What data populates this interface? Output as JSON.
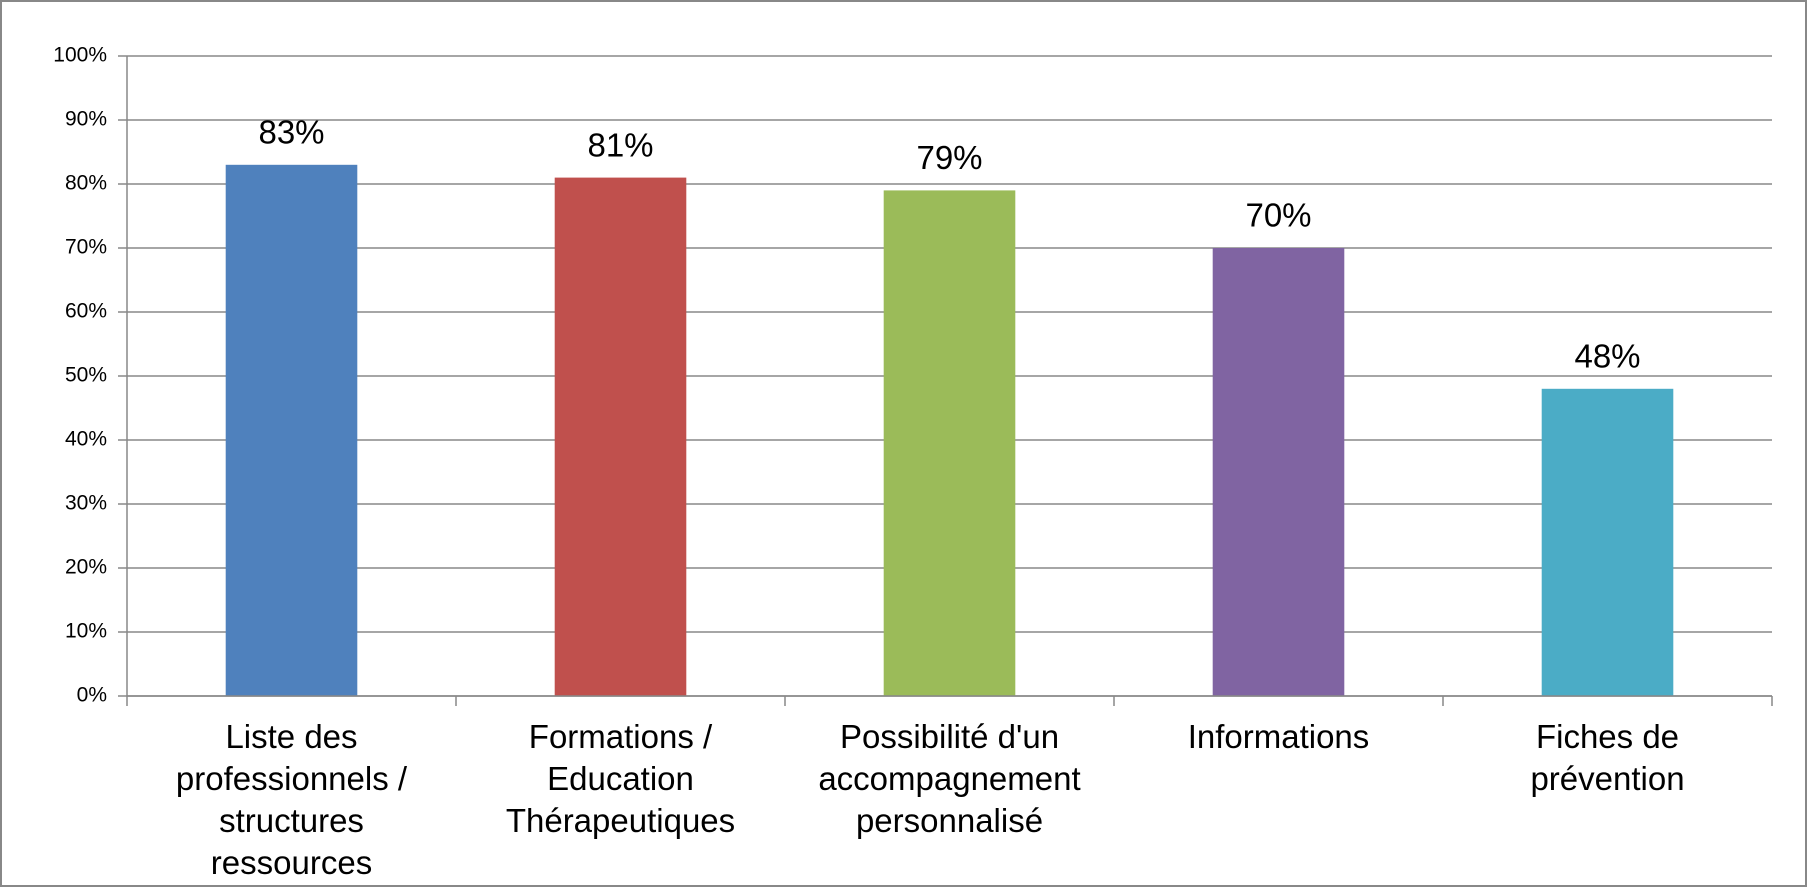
{
  "chart_data": {
    "type": "bar",
    "categories": [
      "Liste des professionnels / structures ressources",
      "Formations / Education Thérapeutiques",
      "Possibilité d'un accompagnement personnalisé",
      "Informations",
      "Fiches de prévention"
    ],
    "values": [
      83,
      81,
      79,
      70,
      48
    ],
    "value_labels": [
      "83%",
      "81%",
      "79%",
      "70%",
      "48%"
    ],
    "colors": [
      "#4f81bd",
      "#c0504d",
      "#9bbb59",
      "#8064a2",
      "#4bacc6"
    ],
    "ylim": [
      0,
      100
    ],
    "yticks": [
      {
        "value": 0,
        "label": "0%"
      },
      {
        "value": 10,
        "label": "10%"
      },
      {
        "value": 20,
        "label": "20%"
      },
      {
        "value": 30,
        "label": "30%"
      },
      {
        "value": 40,
        "label": "40%"
      },
      {
        "value": 50,
        "label": "50%"
      },
      {
        "value": 60,
        "label": "60%"
      },
      {
        "value": 70,
        "label": "70%"
      },
      {
        "value": 80,
        "label": "80%"
      },
      {
        "value": 90,
        "label": "90%"
      },
      {
        "value": 100,
        "label": "100%"
      }
    ],
    "grid": true
  }
}
